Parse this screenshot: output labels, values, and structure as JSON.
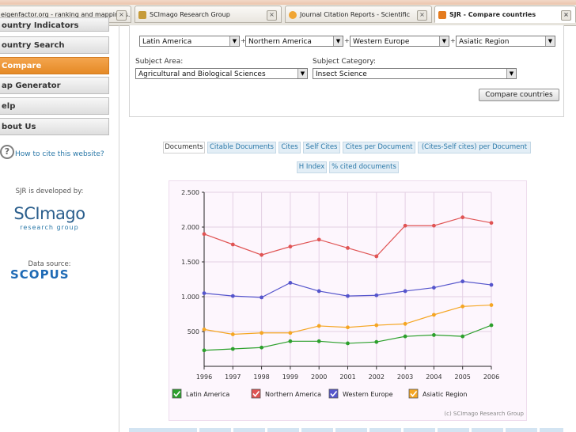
{
  "browser": {
    "tabs": [
      {
        "label": "eigenfactor.org - ranking and mapping s...",
        "active": false
      },
      {
        "label": "SCImago Research Group",
        "active": false
      },
      {
        "label": "Journal Citation Reports - Scientific",
        "active": false
      },
      {
        "label": "SJR - Compare countries",
        "active": true
      }
    ]
  },
  "sidebar": {
    "items": [
      {
        "label": "ountry Indicators",
        "active": false
      },
      {
        "label": "ountry Search",
        "active": false
      },
      {
        "label": "Compare",
        "active": true
      },
      {
        "label": "ap Generator",
        "active": false
      },
      {
        "label": "elp",
        "active": false
      },
      {
        "label": "bout Us",
        "active": false
      }
    ],
    "cite_link": "How to cite this website?",
    "developed_by": "SJR is developed by:",
    "logo_main": "SCImago",
    "logo_sub": "research group",
    "data_source": "Data source:",
    "scopus": "SCOPUS"
  },
  "form": {
    "regions": [
      "Latin America",
      "Northern America",
      "Western Europe",
      "Asiatic Region"
    ],
    "plus": "+",
    "subject_area_label": "Subject Area:",
    "subject_area_value": "Agricultural and Biological Sciences",
    "subject_category_label": "Subject Category:",
    "subject_category_value": "Insect Science",
    "compare_button": "Compare countries"
  },
  "indicator_tabs": [
    {
      "label": "Documents",
      "active": true
    },
    {
      "label": "Citable Documents",
      "active": false
    },
    {
      "label": "Cites",
      "active": false
    },
    {
      "label": "Self Cites",
      "active": false
    },
    {
      "label": "Cites per Document",
      "active": false
    },
    {
      "label": "(Cites-Self cites) per Document",
      "active": false
    },
    {
      "label": "H Index",
      "active": false
    },
    {
      "label": "% cited documents",
      "active": false
    }
  ],
  "chart_data": {
    "type": "line",
    "x": [
      1996,
      1997,
      1998,
      1999,
      2000,
      2001,
      2002,
      2003,
      2004,
      2005,
      2006
    ],
    "y_ticks": [
      "500",
      "1.000",
      "1.500",
      "2.000",
      "2.500"
    ],
    "ylim": [
      0,
      2500
    ],
    "grid": true,
    "legend_position": "bottom",
    "series": [
      {
        "name": "Latin America",
        "color": "#2ca02c",
        "values": [
          230,
          250,
          270,
          360,
          360,
          330,
          350,
          430,
          450,
          430,
          590
        ]
      },
      {
        "name": "Northern America",
        "color": "#e05454",
        "values": [
          1900,
          1750,
          1600,
          1720,
          1820,
          1700,
          1580,
          2020,
          2020,
          2140,
          2060
        ]
      },
      {
        "name": "Western Europe",
        "color": "#5555cc",
        "values": [
          1050,
          1010,
          990,
          1200,
          1080,
          1010,
          1020,
          1080,
          1130,
          1220,
          1170
        ]
      },
      {
        "name": "Asiatic Region",
        "color": "#f5a623",
        "values": [
          530,
          460,
          480,
          480,
          580,
          560,
          590,
          610,
          740,
          860,
          880
        ]
      }
    ],
    "credit": "(c) SCImago Research Group"
  }
}
